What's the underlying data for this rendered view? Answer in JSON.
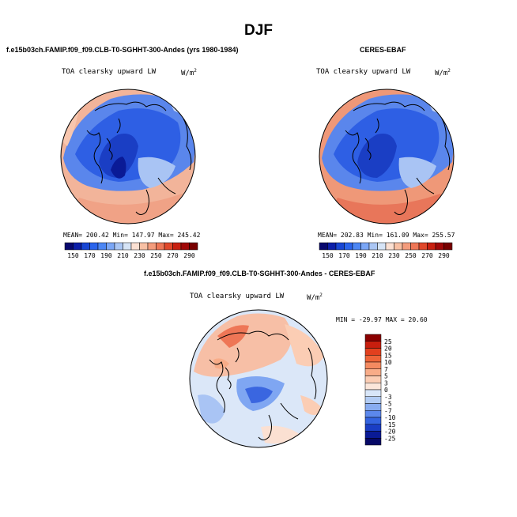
{
  "title": "DJF",
  "panel_left": {
    "case_title": "f.e15b03ch.FAMIP.f09_f09.CLB-T0-SGHHT-300-Andes (yrs 1980-1984)",
    "variable": "TOA clearsky upward LW",
    "units": "W/m",
    "units_sup": "2",
    "stats": "MEAN= 200.42   Min= 147.97   Max= 245.42"
  },
  "panel_right": {
    "case_title": "CERES-EBAF",
    "variable": "TOA clearsky upward LW",
    "units": "W/m",
    "units_sup": "2",
    "stats": "MEAN= 202.83   Min= 161.09   Max= 255.57"
  },
  "panel_diff": {
    "case_title": "f.e15b03ch.FAMIP.f09_f09.CLB-T0-SGHHT-300-Andes - CERES-EBAF",
    "variable": "TOA clearsky upward LW",
    "units": "W/m",
    "units_sup": "2",
    "stats": "MIN = -29.97 MAX =  20.60"
  },
  "colorbar_top": {
    "labels": [
      "150",
      "170",
      "190",
      "210",
      "230",
      "250",
      "270",
      "290"
    ],
    "colors": [
      "#08086e",
      "#0c1ea8",
      "#1846d4",
      "#2a64ec",
      "#4c86f4",
      "#7aa6f6",
      "#aac6f4",
      "#d6e4f6",
      "#fbe0d2",
      "#f8c0a4",
      "#f49c7c",
      "#ee7656",
      "#e0482a",
      "#c82010",
      "#a00808",
      "#780000"
    ]
  },
  "colorbar_diff": {
    "labels": [
      "25",
      "20",
      "15",
      "10",
      "7",
      "5",
      "3",
      "0",
      "-3",
      "-5",
      "-7",
      "-10",
      "-15",
      "-20",
      "-25"
    ],
    "colors": [
      "#8a0000",
      "#c81e0e",
      "#e2401e",
      "#ee6438",
      "#f48a60",
      "#f8ac88",
      "#fbcdb4",
      "#fbe6da",
      "#d8e6f8",
      "#b2ccf4",
      "#88acf0",
      "#5c88ec",
      "#3464e0",
      "#1a3ec4",
      "#0a1a96",
      "#060866"
    ]
  }
}
